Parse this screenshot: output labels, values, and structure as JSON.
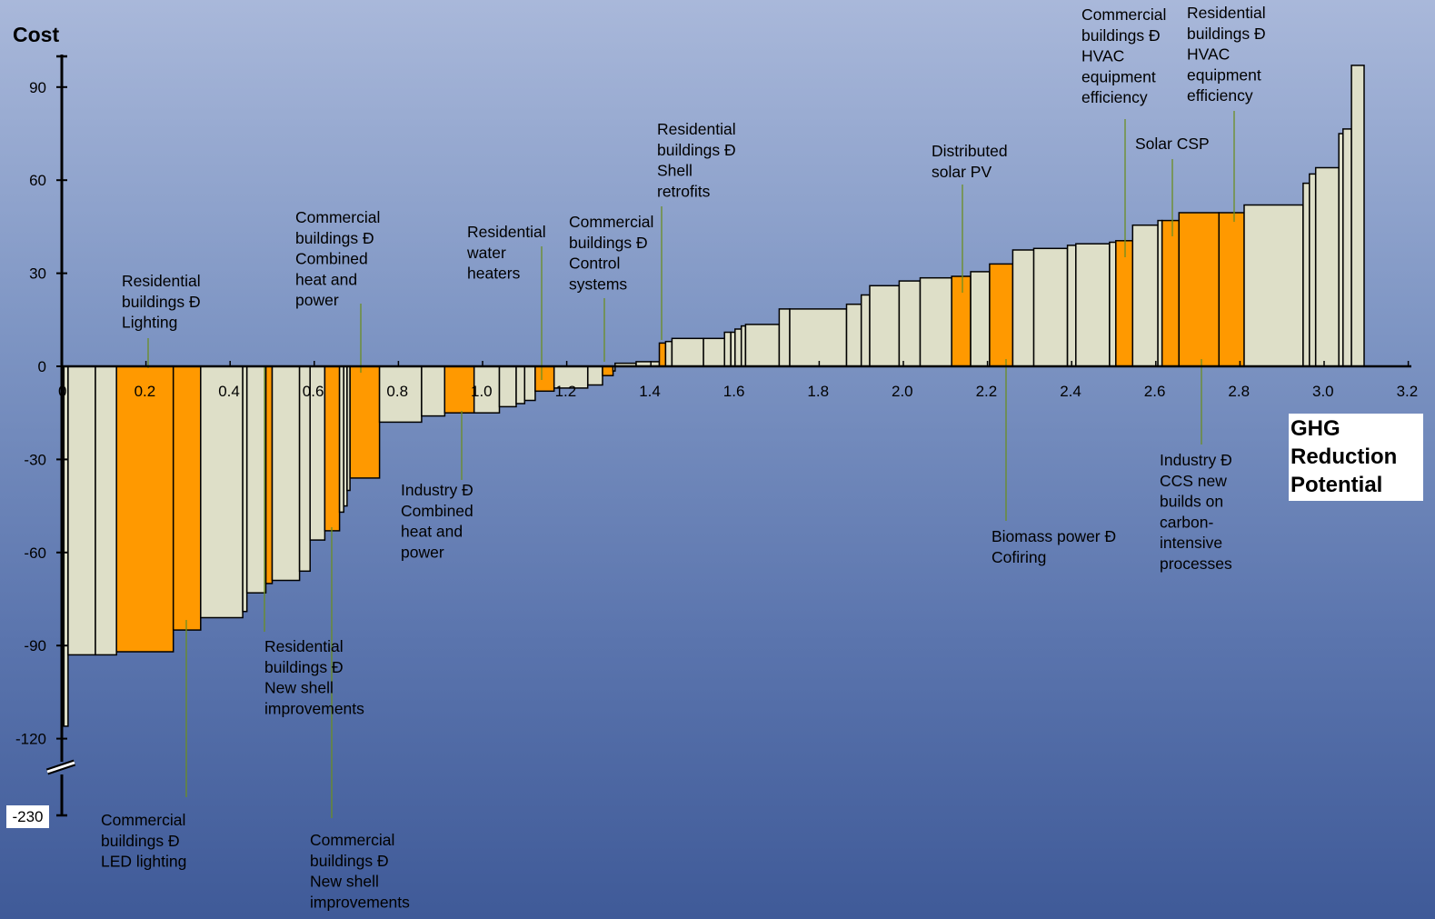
{
  "chart_data": {
    "type": "bar",
    "subtype": "marginal-abatement-cost-curve",
    "ylabel": "Cost",
    "xlabel": "GHG Reduction Potential",
    "xlabel_lines": [
      "GHG",
      "Reduction",
      "Potential"
    ],
    "xlim": [
      0,
      3.2
    ],
    "ylim": [
      -120,
      100
    ],
    "y_break": {
      "shown_value": -230,
      "label": "-230"
    },
    "x_ticks": [
      0,
      0.2,
      0.4,
      0.6,
      0.8,
      1.0,
      1.2,
      1.4,
      1.6,
      1.8,
      2.0,
      2.2,
      2.4,
      2.6,
      2.8,
      3.0,
      3.2
    ],
    "x_tick_labels": [
      "0",
      "0.2",
      "0.4",
      "0.6",
      "0.8",
      "1.0",
      "1.2",
      "1.4",
      "1.6",
      "1.8",
      "2.0",
      "2.2",
      "2.4",
      "2.6",
      "2.8",
      "3.0",
      "3.2"
    ],
    "y_ticks": [
      90,
      60,
      30,
      0,
      -30,
      -60,
      -90,
      -120
    ],
    "y_tick_labels": [
      "90",
      "60",
      "30",
      "0",
      "-30",
      "-60",
      "-90",
      "-120"
    ],
    "colors": {
      "highlight": "#ff9900",
      "other": "#dedfc8",
      "outline": "#000000",
      "leader": "#6b8e23"
    },
    "bars": [
      {
        "x0": 0.005,
        "x1": 0.015,
        "y": -116,
        "hl": false
      },
      {
        "x0": 0.015,
        "x1": 0.08,
        "y": -93,
        "hl": false
      },
      {
        "x0": 0.08,
        "x1": 0.13,
        "y": -93,
        "hl": false
      },
      {
        "x0": 0.13,
        "x1": 0.265,
        "y": -92,
        "hl": true
      },
      {
        "x0": 0.265,
        "x1": 0.33,
        "y": -85,
        "hl": true
      },
      {
        "x0": 0.33,
        "x1": 0.43,
        "y": -81,
        "hl": false
      },
      {
        "x0": 0.43,
        "x1": 0.44,
        "y": -79,
        "hl": false
      },
      {
        "x0": 0.44,
        "x1": 0.485,
        "y": -73,
        "hl": false
      },
      {
        "x0": 0.485,
        "x1": 0.5,
        "y": -70,
        "hl": true
      },
      {
        "x0": 0.5,
        "x1": 0.565,
        "y": -69,
        "hl": false
      },
      {
        "x0": 0.565,
        "x1": 0.59,
        "y": -66,
        "hl": false
      },
      {
        "x0": 0.59,
        "x1": 0.625,
        "y": -56,
        "hl": false
      },
      {
        "x0": 0.625,
        "x1": 0.66,
        "y": -53,
        "hl": true
      },
      {
        "x0": 0.66,
        "x1": 0.67,
        "y": -47,
        "hl": false
      },
      {
        "x0": 0.67,
        "x1": 0.678,
        "y": -45,
        "hl": false
      },
      {
        "x0": 0.678,
        "x1": 0.685,
        "y": -40,
        "hl": false
      },
      {
        "x0": 0.685,
        "x1": 0.755,
        "y": -36,
        "hl": true
      },
      {
        "x0": 0.755,
        "x1": 0.855,
        "y": -18,
        "hl": false
      },
      {
        "x0": 0.855,
        "x1": 0.91,
        "y": -16,
        "hl": false
      },
      {
        "x0": 0.91,
        "x1": 0.98,
        "y": -15,
        "hl": true
      },
      {
        "x0": 0.98,
        "x1": 1.04,
        "y": -15,
        "hl": false
      },
      {
        "x0": 1.04,
        "x1": 1.08,
        "y": -13,
        "hl": false
      },
      {
        "x0": 1.08,
        "x1": 1.1,
        "y": -12,
        "hl": false
      },
      {
        "x0": 1.1,
        "x1": 1.125,
        "y": -11,
        "hl": false
      },
      {
        "x0": 1.125,
        "x1": 1.17,
        "y": -8,
        "hl": true
      },
      {
        "x0": 1.17,
        "x1": 1.25,
        "y": -7,
        "hl": false
      },
      {
        "x0": 1.25,
        "x1": 1.285,
        "y": -6,
        "hl": false
      },
      {
        "x0": 1.285,
        "x1": 1.31,
        "y": -3,
        "hl": true
      },
      {
        "x0": 1.31,
        "x1": 1.315,
        "y": -1.5,
        "hl": false
      },
      {
        "x0": 1.315,
        "x1": 1.365,
        "y": 1,
        "hl": false
      },
      {
        "x0": 1.365,
        "x1": 1.42,
        "y": 1.5,
        "hl": false
      },
      {
        "x0": 1.42,
        "x1": 1.435,
        "y": 7.5,
        "hl": true
      },
      {
        "x0": 1.435,
        "x1": 1.45,
        "y": 8,
        "hl": false
      },
      {
        "x0": 1.45,
        "x1": 1.525,
        "y": 9,
        "hl": false
      },
      {
        "x0": 1.525,
        "x1": 1.575,
        "y": 9,
        "hl": false
      },
      {
        "x0": 1.575,
        "x1": 1.59,
        "y": 11,
        "hl": false
      },
      {
        "x0": 1.59,
        "x1": 1.6,
        "y": 11,
        "hl": false
      },
      {
        "x0": 1.6,
        "x1": 1.615,
        "y": 12,
        "hl": false
      },
      {
        "x0": 1.615,
        "x1": 1.625,
        "y": 13,
        "hl": false
      },
      {
        "x0": 1.625,
        "x1": 1.705,
        "y": 13.5,
        "hl": false
      },
      {
        "x0": 1.705,
        "x1": 1.73,
        "y": 18.5,
        "hl": false
      },
      {
        "x0": 1.73,
        "x1": 1.865,
        "y": 18.5,
        "hl": false
      },
      {
        "x0": 1.865,
        "x1": 1.9,
        "y": 20,
        "hl": false
      },
      {
        "x0": 1.9,
        "x1": 1.92,
        "y": 23,
        "hl": false
      },
      {
        "x0": 1.92,
        "x1": 1.99,
        "y": 26,
        "hl": false
      },
      {
        "x0": 1.99,
        "x1": 2.04,
        "y": 27.5,
        "hl": false
      },
      {
        "x0": 2.04,
        "x1": 2.115,
        "y": 28.5,
        "hl": false
      },
      {
        "x0": 2.115,
        "x1": 2.16,
        "y": 29,
        "hl": true
      },
      {
        "x0": 2.16,
        "x1": 2.205,
        "y": 30.5,
        "hl": false
      },
      {
        "x0": 2.205,
        "x1": 2.26,
        "y": 33,
        "hl": true
      },
      {
        "x0": 2.26,
        "x1": 2.31,
        "y": 37.5,
        "hl": false
      },
      {
        "x0": 2.31,
        "x1": 2.39,
        "y": 38,
        "hl": false
      },
      {
        "x0": 2.39,
        "x1": 2.41,
        "y": 39,
        "hl": false
      },
      {
        "x0": 2.41,
        "x1": 2.49,
        "y": 39.5,
        "hl": false
      },
      {
        "x0": 2.49,
        "x1": 2.505,
        "y": 40,
        "hl": false
      },
      {
        "x0": 2.505,
        "x1": 2.545,
        "y": 40.5,
        "hl": true
      },
      {
        "x0": 2.545,
        "x1": 2.605,
        "y": 45.5,
        "hl": false
      },
      {
        "x0": 2.605,
        "x1": 2.615,
        "y": 47,
        "hl": false
      },
      {
        "x0": 2.615,
        "x1": 2.655,
        "y": 47,
        "hl": true
      },
      {
        "x0": 2.655,
        "x1": 2.75,
        "y": 49.5,
        "hl": true
      },
      {
        "x0": 2.75,
        "x1": 2.81,
        "y": 49.5,
        "hl": true
      },
      {
        "x0": 2.81,
        "x1": 2.95,
        "y": 52,
        "hl": false
      },
      {
        "x0": 2.95,
        "x1": 2.965,
        "y": 59,
        "hl": false
      },
      {
        "x0": 2.965,
        "x1": 2.98,
        "y": 62,
        "hl": false
      },
      {
        "x0": 2.98,
        "x1": 3.035,
        "y": 64,
        "hl": false
      },
      {
        "x0": 3.035,
        "x1": 3.045,
        "y": 75,
        "hl": false
      },
      {
        "x0": 3.045,
        "x1": 3.065,
        "y": 76.5,
        "hl": false
      },
      {
        "x0": 3.065,
        "x1": 3.095,
        "y": 97,
        "hl": false
      }
    ],
    "annotations": [
      {
        "lines": [
          "Residential",
          "buildings Ð",
          "Lighting"
        ],
        "text_x": 0.185,
        "text_top": 97,
        "lx": 0.205,
        "ly1": -1,
        "ly2": -18
      },
      {
        "lines": [
          "Commercial",
          "buildings Ð",
          "Combined",
          "heat and",
          "power"
        ],
        "text_x": 0.6,
        "text_top": 6,
        "lx": 0.71,
        "ly1": -1,
        "ly2": -20
      },
      {
        "lines": [
          "Residential",
          "water",
          "heaters"
        ],
        "text_x": 1.0,
        "text_top": -10,
        "lx": 1.145,
        "ly1": -1,
        "ly2": -24
      },
      {
        "lines": [
          "Commercial",
          "buildings Ð",
          "Control",
          "systems"
        ],
        "text_x": 1.245,
        "text_top": -5,
        "lx": 1.295,
        "ly1": -1,
        "ly2": -16
      },
      {
        "lines": [
          "Residential",
          "buildings Ð",
          "Shell",
          "retrofits"
        ],
        "text_x": 1.455,
        "text_top": -10,
        "lx": 1.427,
        "ly1": -4,
        "ly2": -30
      },
      {
        "lines": [
          "Distributed",
          "solar PV"
        ],
        "text_x": 2.08,
        "text_top": -3,
        "lx": 2.14,
        "ly1": -3,
        "ly2": -22
      },
      {
        "lines": [
          "Commercial",
          "buildings Ð",
          "HVAC",
          "equipment",
          "efficiency"
        ],
        "text_x": 2.44,
        "text_top": -3,
        "lx": 2.53,
        "ly1": -3,
        "ly2": -30
      },
      {
        "lines": [
          "Solar  CSP"
        ],
        "text_x": 2.56,
        "text_top": -10,
        "lx": 2.63,
        "ly1": -3,
        "ly2": -14
      },
      {
        "lines": [
          "Residential",
          "buildings Ð",
          "HVAC",
          "equipment",
          "efficiency"
        ],
        "text_x": 2.8,
        "text_top": -3,
        "lx": 2.79,
        "ly1": -3,
        "ly2": -22
      },
      {
        "lines": [
          "Commercial",
          "buildings Ð",
          "LED lighting"
        ],
        "text_x": 0.175,
        "text_top": -8,
        "lx": 0.3,
        "ly1": -30,
        "ly2": -56
      },
      {
        "lines": [
          "Residential",
          "buildings Ð",
          "New shell",
          "improvements"
        ],
        "text_x": 0.53,
        "text_top": -9,
        "lx": 0.49,
        "ly1": -2,
        "ly2": -12
      },
      {
        "lines": [
          "Commercial",
          "buildings Ð",
          "New shell",
          "improvements"
        ],
        "text_x": 0.65,
        "text_top": -8,
        "lx": 0.645,
        "ly1": -30,
        "ly2": -57
      },
      {
        "lines": [
          "Industry Ð",
          "Combined",
          "heat and",
          "power"
        ],
        "text_x": 0.85,
        "text_top": -7,
        "lx": 0.95,
        "ly1": -2,
        "ly2": -14
      },
      {
        "lines": [
          "Biomass  power Ð",
          "Cofiring"
        ],
        "text_x": 2.25,
        "text_top": -17,
        "lx": 2.23,
        "ly1": -2,
        "ly2": -49
      },
      {
        "lines": [
          "Industry Ð",
          "CCS new",
          "builds on",
          "carbon-",
          "intensive",
          "processes"
        ],
        "text_x": 2.65,
        "text_top": -8,
        "lx": 2.73,
        "ly1": -2,
        "ly2": -25
      }
    ]
  }
}
